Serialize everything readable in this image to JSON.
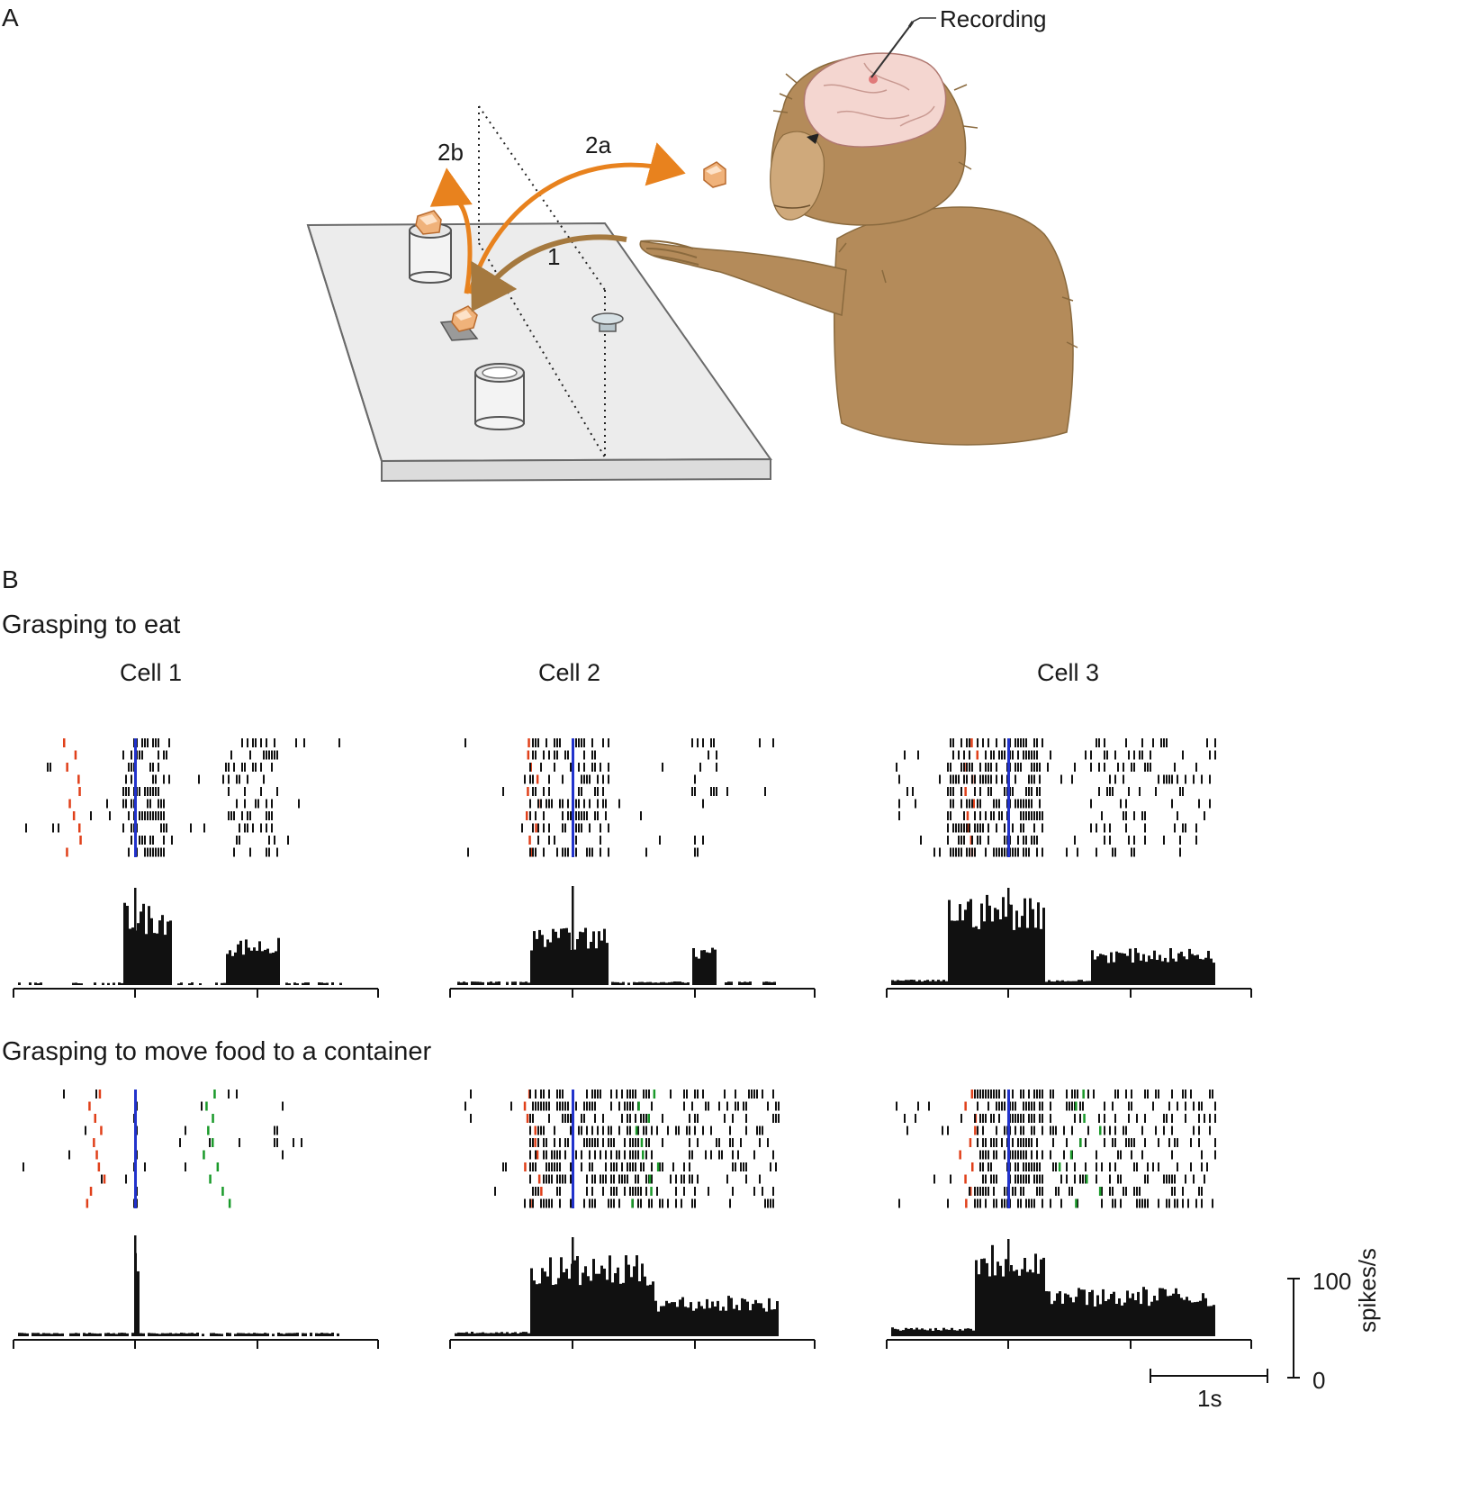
{
  "panel_a": {
    "letter": "A",
    "recording_label": "Recording",
    "path_labels": {
      "reach": "1",
      "to_mouth": "2a",
      "to_container": "2b"
    },
    "colors": {
      "reach": "#a5793f",
      "move": "#e8821e",
      "monkey": "#b48b5a",
      "brain": "#f4d6d0",
      "table": "#ececec"
    }
  },
  "panel_b": {
    "letter": "B",
    "rows": [
      {
        "title": "Grasping to eat"
      },
      {
        "title": "Grasping to move food to a container"
      }
    ],
    "cells": [
      "Cell 1",
      "Cell 2",
      "Cell 3"
    ],
    "scale": {
      "y_top": "100",
      "y_bottom": "0",
      "y_unit": "spikes/s",
      "x_label": "1s"
    },
    "raster_colors": {
      "start": "#e0401a",
      "grasp": "#2233cc",
      "release": "#1a9a2a",
      "spikes": "#111111"
    }
  }
}
